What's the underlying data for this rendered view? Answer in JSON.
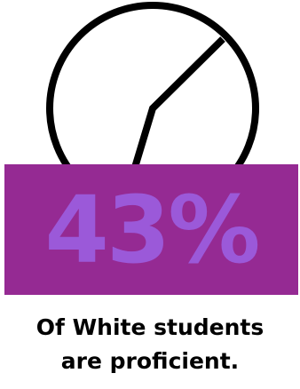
{
  "stat": {
    "percent_label": "43%",
    "percent_value": 43
  },
  "caption": {
    "line1": "Of White students",
    "line2": "are proficient."
  },
  "colors": {
    "band": "#952A93",
    "percent_text": "#9B59D9",
    "caption_text": "#000000",
    "pie_stroke": "#000000"
  },
  "icon": "pie-chart-icon"
}
